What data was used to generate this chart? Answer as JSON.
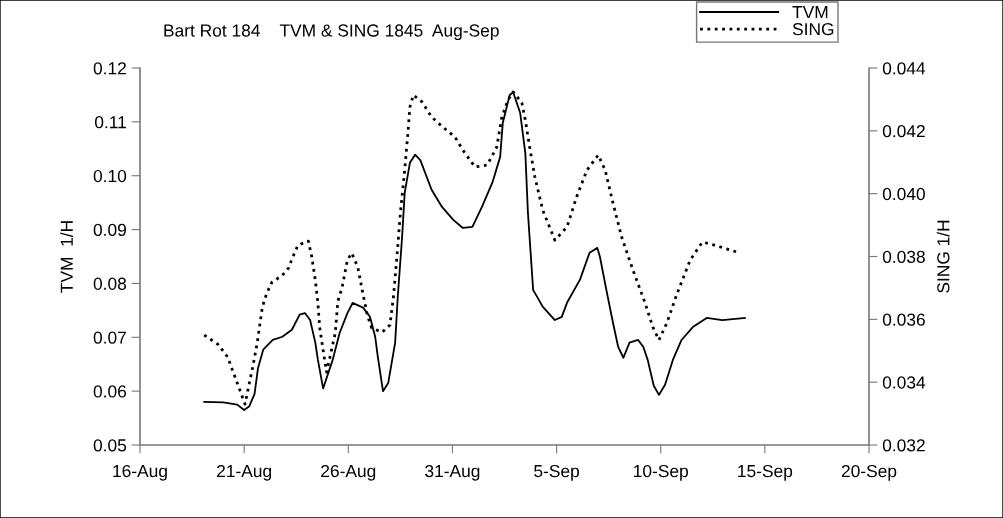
{
  "chart_data": {
    "type": "line",
    "title": "Bart Rot 184    TVM & SING 1845  Aug-Sep",
    "ylabel": "TVM  1/H",
    "y2label": "SING 1/H",
    "xlim": [
      "1845-08-16",
      "1845-09-20"
    ],
    "xticks": [
      {
        "value": "1845-08-16",
        "label": "16-Aug"
      },
      {
        "value": "1845-08-21",
        "label": "21-Aug"
      },
      {
        "value": "1845-08-26",
        "label": "26-Aug"
      },
      {
        "value": "1845-08-31",
        "label": "31-Aug"
      },
      {
        "value": "1845-09-05",
        "label": "5-Sep"
      },
      {
        "value": "1845-09-10",
        "label": "10-Sep"
      },
      {
        "value": "1845-09-15",
        "label": "15-Sep"
      },
      {
        "value": "1845-09-20",
        "label": "20-Sep"
      }
    ],
    "ylim": [
      0.05,
      0.12
    ],
    "yticks": [
      0.05,
      0.06,
      0.07,
      0.08,
      0.09,
      {
        "value": 0.1,
        "label": "0.10"
      },
      0.11,
      0.12
    ],
    "y2lim": [
      0.032,
      0.044
    ],
    "y2ticks": [
      0.032,
      0.034,
      0.036,
      0.038,
      {
        "value": 0.04,
        "label": "0.040"
      },
      0.042,
      0.044
    ],
    "grid": false,
    "legend": "top right",
    "series": [
      {
        "name": "TVM",
        "color": "#000000",
        "line_style": "solid",
        "x": [
          "1845-08-19T02:00",
          "1845-08-20T00:00",
          "1845-08-20T16:00",
          "1845-08-21T00:00",
          "1845-08-21T06:00",
          "1845-08-21T12:00",
          "1845-08-21T16:00",
          "1845-08-21T22:00",
          "1845-08-22T09:00",
          "1845-08-22T20:00",
          "1845-08-23T07:00",
          "1845-08-23T16:00",
          "1845-08-23T22:00",
          "1845-08-24T04:00",
          "1845-08-24T10:00",
          "1845-08-24T13:00",
          "1845-08-24T19:00",
          "1845-08-25T06:00",
          "1845-08-25T14:00",
          "1845-08-25T23:00",
          "1845-08-26T05:00",
          "1845-08-26T17:00",
          "1845-08-27T01:00",
          "1845-08-27T07:00",
          "1845-08-27T10:00",
          "1845-08-27T16:00",
          "1845-08-27T22:00",
          "1845-08-28T06:00",
          "1845-08-28T09:00",
          "1845-08-28T14:00",
          "1845-08-28T17:00",
          "1845-08-28T23:00",
          "1845-08-29T05:00",
          "1845-08-29T11:00",
          "1845-08-30T00:00",
          "1845-08-30T12:00",
          "1845-08-31T01:00",
          "1845-08-31T12:00",
          "1845-08-31T23:00",
          "1845-09-01T10:00",
          "1845-09-01T22:00",
          "1845-09-02T07:00",
          "1845-09-02T10:00",
          "1845-09-02T18:00",
          "1845-09-02T22:00",
          "1845-09-03T06:00",
          "1845-09-03T12:00",
          "1845-09-03T15:00",
          "1845-09-03T21:00",
          "1845-09-04T08:00",
          "1845-09-04T22:00",
          "1845-09-05T06:00",
          "1845-09-05T12:00",
          "1845-09-06T03:00",
          "1845-09-06T14:00",
          "1845-09-06T23:00",
          "1845-09-07T02:00",
          "1845-09-07T10:00",
          "1845-09-07T17:00",
          "1845-09-07T23:00",
          "1845-09-08T05:00",
          "1845-09-08T12:00",
          "1845-09-08T22:00",
          "1845-09-09T04:00",
          "1845-09-09T09:00",
          "1845-09-09T16:00",
          "1845-09-09T22:00",
          "1845-09-10T05:00",
          "1845-09-10T14:00",
          "1845-09-11T00:00",
          "1845-09-11T13:00",
          "1845-09-12T05:00",
          "1845-09-12T23:00",
          "1845-09-14T01:00"
        ],
        "values": [
          0.058,
          0.0579,
          0.0575,
          0.0565,
          0.0572,
          0.0595,
          0.0643,
          0.0677,
          0.0695,
          0.0701,
          0.0714,
          0.0742,
          0.0745,
          0.0732,
          0.069,
          0.0658,
          0.0605,
          0.0658,
          0.0708,
          0.0745,
          0.0764,
          0.0755,
          0.0738,
          0.0701,
          0.0664,
          0.06,
          0.0615,
          0.069,
          0.0775,
          0.0886,
          0.0968,
          0.1024,
          0.1039,
          0.1029,
          0.0974,
          0.0942,
          0.0918,
          0.0903,
          0.0905,
          0.0942,
          0.0987,
          0.1035,
          0.1098,
          0.115,
          0.1155,
          0.1117,
          0.1042,
          0.0931,
          0.0788,
          0.0757,
          0.0732,
          0.0738,
          0.0764,
          0.0807,
          0.0857,
          0.0866,
          0.0849,
          0.0783,
          0.0727,
          0.0682,
          0.0662,
          0.069,
          0.0695,
          0.0682,
          0.0658,
          0.061,
          0.0593,
          0.0612,
          0.0658,
          0.0695,
          0.0719,
          0.0736,
          0.0732,
          0.0736
        ]
      },
      {
        "name": "SING",
        "color": "#000000",
        "line_style": "dotted",
        "axis": "y2",
        "x": [
          "1845-08-19T02:00",
          "1845-08-19T18:00",
          "1845-08-20T05:00",
          "1845-08-20T13:00",
          "1845-08-21T01:00",
          "1845-08-21T10:00",
          "1845-08-21T15:00",
          "1845-08-21T21:00",
          "1845-08-22T02:00",
          "1845-08-22T08:00",
          "1845-08-22T20:00",
          "1845-08-23T03:00",
          "1845-08-23T08:00",
          "1845-08-23T14:00",
          "1845-08-24T02:00",
          "1845-08-24T06:00",
          "1845-08-24T10:00",
          "1845-08-24T13:00",
          "1845-08-24T15:00",
          "1845-08-24T19:00",
          "1845-08-24T23:00",
          "1845-08-25T09:00",
          "1845-08-25T12:00",
          "1845-08-25T17:00",
          "1845-08-25T23:00",
          "1845-08-26T04:00",
          "1845-08-26T11:00",
          "1845-08-26T16:00",
          "1845-08-26T22:00",
          "1845-08-27T03:00",
          "1845-08-27T15:00",
          "1845-08-28T00:00",
          "1845-08-28T04:00",
          "1845-08-28T08:00",
          "1845-08-28T12:00",
          "1845-08-28T17:00",
          "1845-08-28T21:00",
          "1845-08-28T23:00",
          "1845-08-29T03:00",
          "1845-08-29T13:00",
          "1845-08-30T00:00",
          "1845-08-30T13:00",
          "1845-08-31T03:00",
          "1845-08-31T12:00",
          "1845-09-01T02:00",
          "1845-09-01T16:00",
          "1845-09-02T03:00",
          "1845-09-02T09:00",
          "1845-09-02T16:00",
          "1845-09-02T22:00",
          "1845-09-03T08:00",
          "1845-09-03T12:00",
          "1845-09-03T17:00",
          "1845-09-03T23:00",
          "1845-09-04T08:00",
          "1845-09-04T22:00",
          "1845-09-05T12:00",
          "1845-09-05T23:00",
          "1845-09-06T11:00",
          "1845-09-07T00:00",
          "1845-09-07T08:00",
          "1845-09-07T17:00",
          "1845-09-08T03:00",
          "1845-09-08T16:00",
          "1845-09-09T06:00",
          "1845-09-09T15:00",
          "1845-09-09T22:00",
          "1845-09-10T07:00",
          "1845-09-10T19:00",
          "1845-09-11T10:00",
          "1845-09-12T00:00",
          "1845-09-12T14:00",
          "1845-09-13T16:00"
        ],
        "values": [
          0.0355,
          0.0352,
          0.0348,
          0.0342,
          0.0333,
          0.0345,
          0.03524,
          0.03639,
          0.03683,
          0.03718,
          0.0374,
          0.03763,
          0.03798,
          0.03836,
          0.03849,
          0.03798,
          0.03725,
          0.03652,
          0.03575,
          0.03502,
          0.03432,
          0.03556,
          0.03658,
          0.03703,
          0.03789,
          0.03811,
          0.03766,
          0.03693,
          0.03613,
          0.03572,
          0.03559,
          0.03582,
          0.03671,
          0.03798,
          0.03938,
          0.04075,
          0.04203,
          0.04276,
          0.04314,
          0.04292,
          0.04244,
          0.04212,
          0.0418,
          0.04139,
          0.04085,
          0.04091,
          0.04148,
          0.04244,
          0.04298,
          0.04324,
          0.04289,
          0.04234,
          0.04148,
          0.04053,
          0.03948,
          0.03852,
          0.03894,
          0.03989,
          0.04075,
          0.04123,
          0.04075,
          0.0397,
          0.03862,
          0.03757,
          0.03652,
          0.03575,
          0.03534,
          0.03588,
          0.03683,
          0.03789,
          0.03846,
          0.03836,
          0.03814
        ]
      }
    ]
  }
}
